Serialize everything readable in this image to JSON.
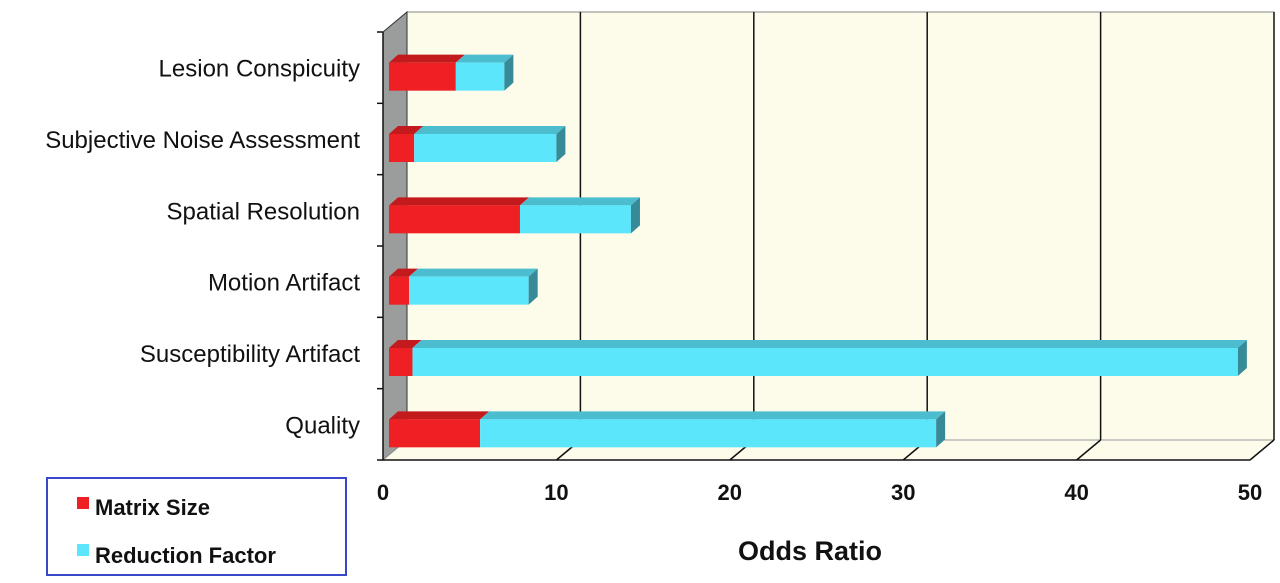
{
  "chart_data": {
    "type": "bar",
    "orientation": "horizontal",
    "stacked": true,
    "style": "3d",
    "categories": [
      "Lesion Conspicuity",
      "Subjective Noise Assessment",
      "Spatial Resolution",
      "Motion Artifact",
      "Susceptibility Artifact",
      "Quality"
    ],
    "series": [
      {
        "name": "Matrix Size",
        "color": "#ee2024",
        "values": [
          4.2,
          1.8,
          7.9,
          1.5,
          1.7,
          5.6
        ]
      },
      {
        "name": "Reduction Factor",
        "color": "#5ce6fb",
        "values": [
          2.8,
          8.2,
          6.4,
          6.9,
          47.6,
          26.3
        ]
      }
    ],
    "xlabel": "Odds Ratio",
    "xlim": [
      0,
      50
    ],
    "xticks": [
      "0",
      "10",
      "20",
      "30",
      "40",
      "50"
    ],
    "grid": true,
    "legend_position": "bottom-left",
    "colors": {
      "plot_background": "#fdfbea",
      "side_wall": "#9b9c9c",
      "legend_border": "#3848c8"
    }
  }
}
